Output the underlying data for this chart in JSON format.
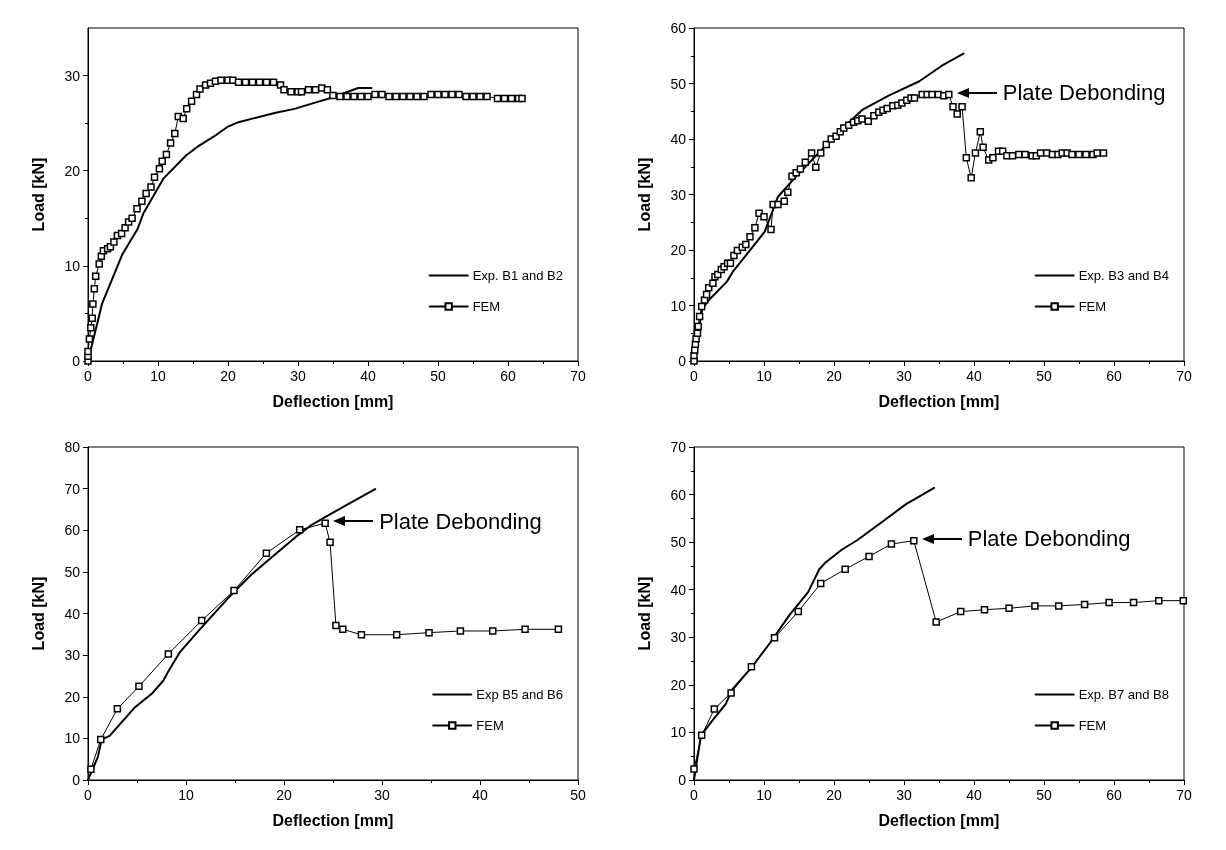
{
  "chart_data": [
    {
      "type": "line",
      "xlabel": "Deflection [mm]",
      "ylabel": "Load [kN]",
      "xlim": [
        0,
        70
      ],
      "ylim": [
        0,
        35
      ],
      "xticks": [
        0,
        10,
        20,
        30,
        40,
        50,
        60,
        70
      ],
      "yticks": [
        0,
        10,
        20,
        30
      ],
      "grid": false,
      "legend": "bottom right",
      "series": [
        {
          "name": "Exp. B1 and B2",
          "color": "#000000",
          "marker": "none",
          "x": [
            0,
            2,
            4.9,
            7.1,
            7.9,
            10.8,
            14,
            15.6,
            18,
            19.9,
            21.5,
            23.6,
            26.8,
            29.5,
            32.2,
            34.9,
            37.5,
            38.6,
            40.5
          ],
          "values": [
            0,
            6,
            11.2,
            13.9,
            15.5,
            19.2,
            21.6,
            22.5,
            23.6,
            24.6,
            25.1,
            25.5,
            26.1,
            26.5,
            27.1,
            27.7,
            28.4,
            28.7,
            28.7
          ]
        },
        {
          "name": "FEM",
          "color": "#000000",
          "marker": "square",
          "x": [
            0,
            0,
            0,
            0.2,
            0.4,
            0.6,
            0.7,
            0.9,
            1.1,
            1.6,
            1.9,
            2.2,
            2.8,
            3.2,
            3.7,
            4.2,
            4.8,
            5.3,
            5.8,
            6.3,
            7,
            7.7,
            8.3,
            9,
            9.5,
            10.2,
            10.6,
            11.2,
            11.8,
            12.4,
            12.9,
            13.6,
            14.1,
            14.8,
            15.5,
            16,
            16.8,
            17.5,
            18.2,
            19,
            20,
            20.7,
            21.5,
            22.5,
            23.5,
            24.5,
            25.5,
            26.5,
            27.5,
            28,
            29,
            30,
            30.5,
            31.5,
            32.5,
            33.4,
            34.2,
            35,
            36,
            37,
            38,
            39,
            40,
            41,
            42,
            43,
            44,
            45,
            46,
            47,
            48,
            49,
            50,
            51,
            52,
            53,
            54,
            55,
            56,
            57,
            58.5,
            59.5,
            60.5,
            61.5,
            62
          ],
          "values": [
            0,
            0.5,
            1,
            2.3,
            3.5,
            4.5,
            6,
            7.6,
            8.9,
            10.2,
            11,
            11.6,
            11.8,
            12,
            12.5,
            13.2,
            13.4,
            14,
            14.6,
            15,
            16,
            16.8,
            17.6,
            18.3,
            19.3,
            20.2,
            21,
            21.7,
            22.9,
            23.9,
            25.7,
            25.5,
            26.5,
            27.3,
            28,
            28.6,
            29,
            29.2,
            29.4,
            29.5,
            29.5,
            29.5,
            29.3,
            29.3,
            29.3,
            29.3,
            29.3,
            29.3,
            29,
            28.5,
            28.3,
            28.3,
            28.3,
            28.5,
            28.5,
            28.7,
            28.5,
            27.9,
            27.8,
            27.8,
            27.8,
            27.8,
            27.8,
            28,
            28,
            27.8,
            27.8,
            27.8,
            27.8,
            27.8,
            27.8,
            28,
            28,
            28,
            28,
            28,
            27.8,
            27.8,
            27.8,
            27.8,
            27.6,
            27.6,
            27.6,
            27.6,
            27.6
          ]
        }
      ]
    },
    {
      "type": "line",
      "xlabel": "Deflection [mm]",
      "ylabel": "Load [kN]",
      "xlim": [
        0,
        70
      ],
      "ylim": [
        0,
        60
      ],
      "xticks": [
        0,
        10,
        20,
        30,
        40,
        50,
        60,
        70
      ],
      "yticks": [
        0,
        10,
        20,
        30,
        40,
        50,
        60
      ],
      "grid": false,
      "legend": "bottom right",
      "annotations": [
        {
          "text": "Plate Debonding",
          "x": 36.4,
          "y": 48
        }
      ],
      "series": [
        {
          "name": "Exp. B3 and B4",
          "color": "#000000",
          "marker": "none",
          "x": [
            0,
            0.4,
            1.2,
            2,
            4.7,
            5.5,
            7.9,
            10.1,
            12,
            14.4,
            17.6,
            20.8,
            24.1,
            27.8,
            32.2,
            35.4,
            38.5
          ],
          "values": [
            0,
            3.8,
            9.4,
            10.8,
            14.3,
            16,
            19.8,
            23.3,
            29.6,
            33,
            37.2,
            41.4,
            45.3,
            47.8,
            50.4,
            53.2,
            55.4
          ]
        },
        {
          "name": "FEM",
          "color": "#000000",
          "marker": "square",
          "x": [
            0,
            0,
            0.1,
            0.2,
            0.3,
            0.5,
            0.6,
            0.8,
            1.1,
            1.5,
            1.8,
            2.1,
            2.7,
            3,
            3.4,
            3.9,
            4.3,
            4.8,
            5.2,
            5.7,
            6.2,
            6.9,
            7.4,
            8,
            8.7,
            9.3,
            10,
            11,
            11.3,
            12,
            12.9,
            13.4,
            14,
            14.6,
            15.2,
            15.9,
            16.8,
            17.4,
            18.1,
            18.9,
            19.6,
            20.3,
            20.9,
            21.4,
            22.1,
            22.8,
            23.4,
            24,
            24.9,
            25.7,
            26.4,
            27,
            27.6,
            28.4,
            29.1,
            29.7,
            30.4,
            31,
            31.5,
            32.6,
            33.3,
            34,
            34.9,
            35.7,
            36.4,
            37,
            37.6,
            38.3,
            38.9,
            39.6,
            40.2,
            40.9,
            41.3,
            42.1,
            42.7,
            43.5,
            44.1,
            44.7,
            45.5,
            46.4,
            47.3,
            48.3,
            48.9,
            49.5,
            50.4,
            51.2,
            52,
            52.6,
            53.3,
            54,
            55,
            56,
            57,
            57.6,
            58.5
          ],
          "values": [
            0,
            1,
            2,
            3,
            4,
            5,
            6.2,
            8,
            9.8,
            11,
            12,
            13.2,
            14,
            15.2,
            15.6,
            16.5,
            17,
            17.6,
            17.6,
            19,
            19.9,
            20.5,
            21,
            22.4,
            24,
            26.6,
            26,
            23.7,
            28.2,
            28.2,
            28.8,
            30.4,
            33.3,
            33.9,
            34.6,
            35.8,
            37.5,
            34.9,
            37.5,
            39,
            40,
            40.5,
            41.3,
            42,
            42.5,
            43,
            43.3,
            43.6,
            43.2,
            44.2,
            44.8,
            45.2,
            45.5,
            46,
            46.1,
            46.5,
            47,
            47.4,
            47.4,
            48,
            48,
            48,
            48,
            47.8,
            48,
            45.8,
            44.5,
            45.8,
            36.6,
            33,
            37.5,
            41.3,
            38.5,
            36.2,
            36.6,
            37.8,
            37.8,
            37,
            37,
            37.2,
            37.2,
            37,
            37,
            37.5,
            37.5,
            37.2,
            37.2,
            37.5,
            37.5,
            37.2,
            37.2,
            37.2,
            37.2,
            37.5,
            37.5
          ]
        }
      ]
    },
    {
      "type": "line",
      "xlabel": "Deflection [mm]",
      "ylabel": "Load [kN]",
      "xlim": [
        0,
        50
      ],
      "ylim": [
        0,
        80
      ],
      "xticks": [
        0,
        10,
        20,
        30,
        40,
        50
      ],
      "yticks": [
        0,
        10,
        20,
        30,
        40,
        50,
        60,
        70,
        80
      ],
      "grid": false,
      "legend": "bottom right",
      "annotations": [
        {
          "text": "Plate Debonding",
          "x": 24.2,
          "y": 61.7
        }
      ],
      "series": [
        {
          "name": "Exp B5 and B6",
          "color": "#000000",
          "marker": "none",
          "x": [
            0,
            1,
            1.4,
            2.2,
            4.8,
            6.5,
            7.7,
            8.1,
            9.4,
            11.3,
            14.3,
            16.6,
            18.9,
            21.2,
            22.7,
            24.6,
            26.5,
            29.3
          ],
          "values": [
            0,
            5.5,
            9.7,
            10.6,
            17.5,
            20.7,
            23.9,
            25.7,
            30.8,
            35.9,
            43.7,
            49.2,
            53.8,
            58.4,
            61.1,
            63.7,
            66.2,
            69.9
          ]
        },
        {
          "name": "FEM",
          "color": "#000000",
          "marker": "square",
          "x": [
            0.3,
            1.3,
            3,
            5.2,
            8.2,
            11.6,
            14.9,
            18.2,
            21.6,
            24.2,
            24.7,
            25.3,
            26,
            27.9,
            31.5,
            34.8,
            38,
            41.3,
            44.6,
            48
          ],
          "values": [
            2.6,
            9.7,
            17.1,
            22.5,
            30.3,
            38.3,
            45.5,
            54.5,
            60.1,
            61.7,
            57.1,
            37.1,
            36.2,
            34.9,
            34.9,
            35.4,
            35.8,
            35.8,
            36.2,
            36.2
          ]
        }
      ]
    },
    {
      "type": "line",
      "xlabel": "Deflection [mm]",
      "ylabel": "Load [kN]",
      "xlim": [
        0,
        70
      ],
      "ylim": [
        0,
        70
      ],
      "xticks": [
        0,
        10,
        20,
        30,
        40,
        50,
        60,
        70
      ],
      "yticks": [
        0,
        10,
        20,
        30,
        40,
        50,
        60,
        70
      ],
      "grid": false,
      "legend": "bottom right",
      "annotations": [
        {
          "text": "Plate Debonding",
          "x": 31.4,
          "y": 50.3
        }
      ],
      "series": [
        {
          "name": "Exp. B7 and B8",
          "color": "#000000",
          "marker": "none",
          "x": [
            0,
            1,
            2.9,
            4.5,
            5.5,
            8.2,
            10.9,
            13.6,
            16.3,
            17.9,
            18.7,
            21.1,
            23.3,
            27.1,
            30.3,
            32.4,
            34.3
          ],
          "values": [
            0,
            9.4,
            13,
            15.9,
            19.1,
            23.6,
            28.9,
            34.6,
            39.5,
            44.3,
            45.6,
            48.4,
            50.4,
            54.5,
            58,
            59.8,
            61.4
          ]
        },
        {
          "name": "FEM",
          "color": "#000000",
          "marker": "square",
          "x": [
            0,
            1.1,
            2.9,
            5.3,
            8.2,
            11.5,
            14.9,
            18.1,
            21.6,
            25,
            28.2,
            31.4,
            34.6,
            38.1,
            41.5,
            45,
            48.7,
            52.1,
            55.8,
            59.3,
            62.8,
            66.4,
            69.9
          ],
          "values": [
            2.3,
            9.4,
            14.9,
            18.3,
            23.8,
            29.9,
            35.4,
            41.3,
            44.3,
            47,
            49.6,
            50.3,
            33.2,
            35.4,
            35.8,
            36.1,
            36.6,
            36.6,
            36.9,
            37.3,
            37.3,
            37.7,
            37.7
          ]
        }
      ]
    }
  ]
}
